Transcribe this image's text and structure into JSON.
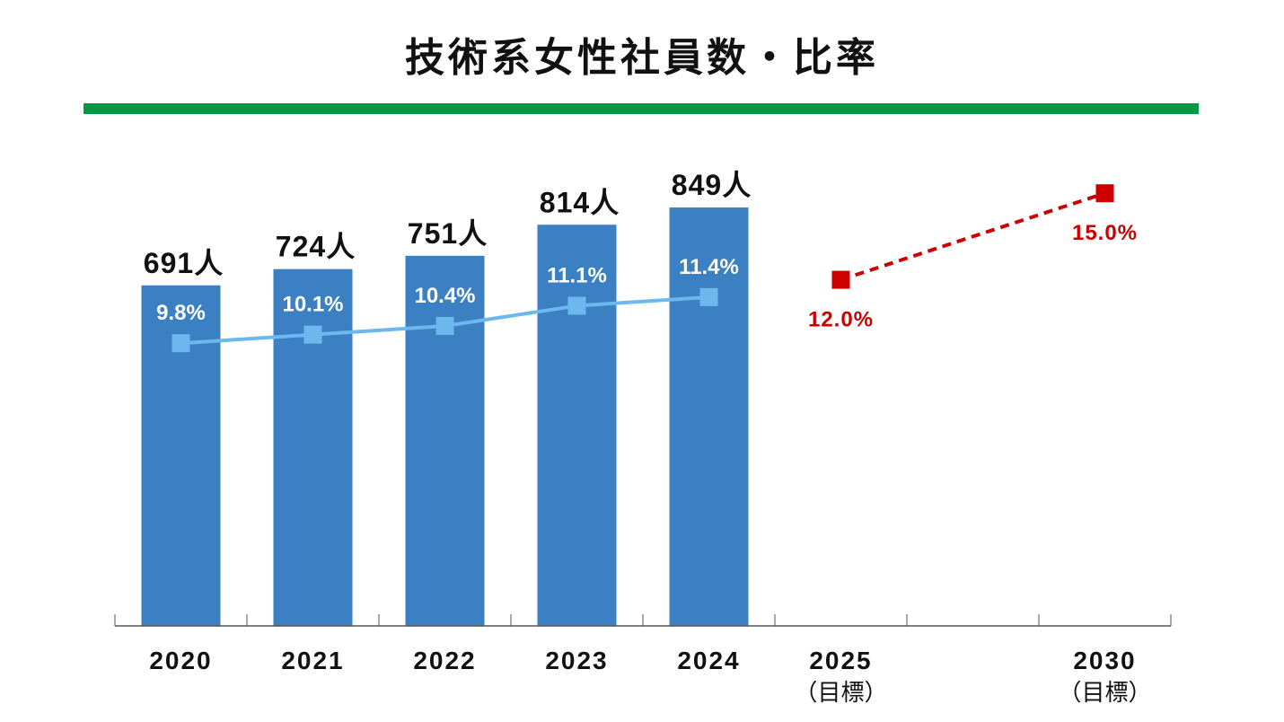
{
  "chart_data": {
    "type": "bar+line",
    "title": "技術系女性社員数・比率",
    "categories": [
      "2020",
      "2021",
      "2022",
      "2023",
      "2024",
      "2025",
      "",
      "2030"
    ],
    "category_sublabels": [
      "",
      "",
      "",
      "",
      "",
      "（目標）",
      "",
      "（目標）"
    ],
    "bar_series": {
      "values": [
        691,
        724,
        751,
        814,
        849,
        null,
        null,
        null
      ],
      "labels": [
        "691人",
        "724人",
        "751人",
        "814人",
        "849人",
        "",
        "",
        ""
      ],
      "color": "#3b80c3"
    },
    "line_series": {
      "values": [
        9.8,
        10.1,
        10.4,
        11.1,
        11.4,
        null,
        null,
        null
      ],
      "labels": [
        "9.8%",
        "10.1%",
        "10.4%",
        "11.1%",
        "11.4%",
        "",
        "",
        ""
      ],
      "color": "#6cb8ee"
    },
    "target_series": {
      "values": [
        null,
        null,
        null,
        null,
        null,
        12.0,
        null,
        15.0
      ],
      "labels": [
        "",
        "",
        "",
        "",
        "",
        "12.0%",
        "",
        "15.0%"
      ],
      "color": "#cc0000",
      "style": "dashed"
    },
    "ylim": [
      0,
      1270
    ],
    "y2lim": [
      0,
      21.7
    ],
    "grid": false,
    "legend": "none",
    "accent_color": "#009a44"
  }
}
